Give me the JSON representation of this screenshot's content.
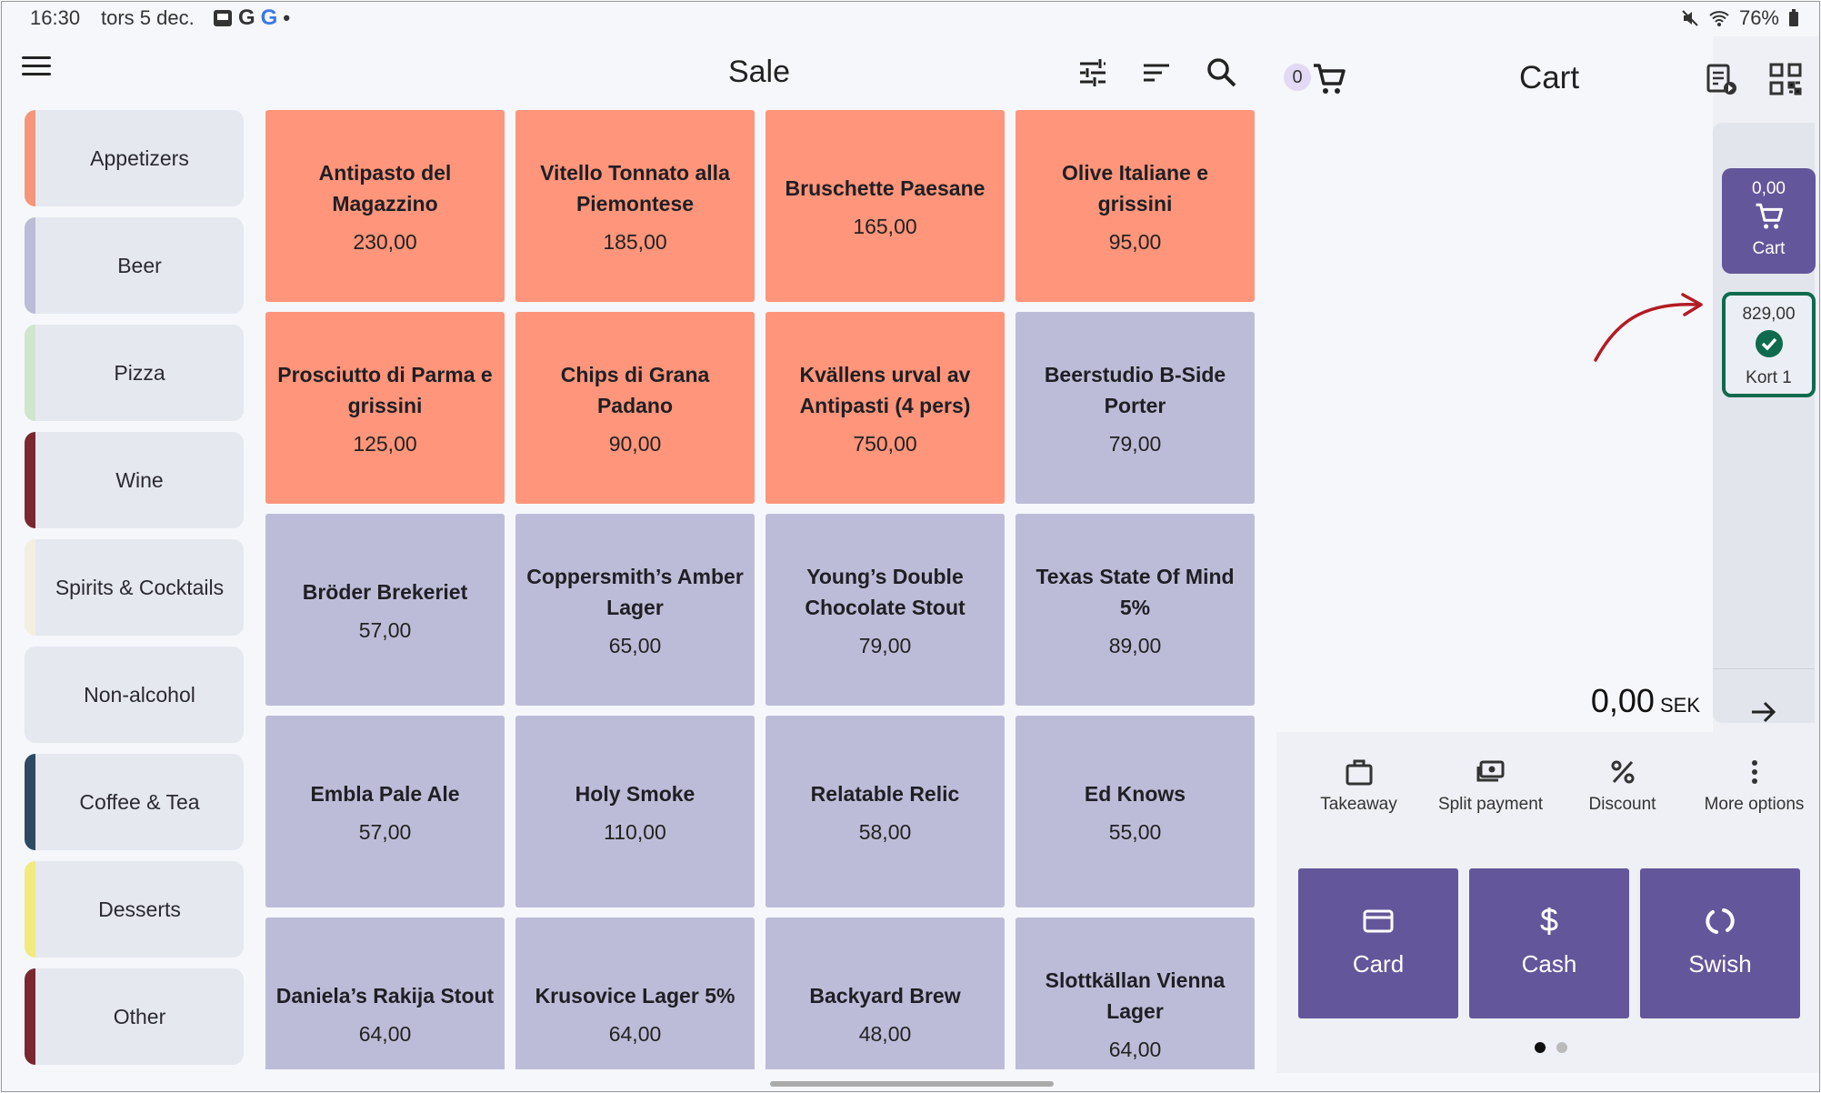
{
  "status_bar": {
    "time": "16:30",
    "date": "tors 5 dec.",
    "battery": "76%"
  },
  "header": {
    "title": "Sale",
    "icons": [
      "menu-icon",
      "tune-icon",
      "sort-icon",
      "search-icon"
    ]
  },
  "categories": [
    {
      "label": "Appetizers",
      "color": "#f5957a"
    },
    {
      "label": "Beer",
      "color": "#bcbcd6"
    },
    {
      "label": "Pizza",
      "color": "#cfe5cc"
    },
    {
      "label": "Wine",
      "color": "#7a2730"
    },
    {
      "label": "Spirits & Cocktails",
      "color": "#f3efe0"
    },
    {
      "label": "Non-alcohol",
      "color": "#e6e8f0"
    },
    {
      "label": "Coffee & Tea",
      "color": "#2e4a63"
    },
    {
      "label": "Desserts",
      "color": "#f2ea7c"
    },
    {
      "label": "Other",
      "color": "#7a2730"
    }
  ],
  "products": [
    {
      "name": "Antipasto del Magazzino",
      "price": "230,00",
      "color": "#ff957a"
    },
    {
      "name": "Vitello Tonnato alla Piemontese",
      "price": "185,00",
      "color": "#ff957a"
    },
    {
      "name": "Bruschette Paesane",
      "price": "165,00",
      "color": "#ff957a"
    },
    {
      "name": "Olive Italiane e grissini",
      "price": "95,00",
      "color": "#ff957a"
    },
    {
      "name": "Prosciutto di Parma e grissini",
      "price": "125,00",
      "color": "#ff957a"
    },
    {
      "name": "Chips di Grana Padano",
      "price": "90,00",
      "color": "#ff957a"
    },
    {
      "name": "Kvällens urval av Antipasti (4 pers)",
      "price": "750,00",
      "color": "#ff957a"
    },
    {
      "name": "Beerstudio B-Side Porter",
      "price": "79,00",
      "color": "#bdbcd8"
    },
    {
      "name": "Bröder Brekeriet",
      "price": "57,00",
      "color": "#bdbcd8"
    },
    {
      "name": "Coppersmith’s Amber Lager",
      "price": "65,00",
      "color": "#bdbcd8"
    },
    {
      "name": "Young’s Double Chocolate Stout",
      "price": "79,00",
      "color": "#bdbcd8"
    },
    {
      "name": "Texas State Of Mind 5%",
      "price": "89,00",
      "color": "#bdbcd8"
    },
    {
      "name": "Embla Pale Ale",
      "price": "57,00",
      "color": "#bdbcd8"
    },
    {
      "name": "Holy Smoke",
      "price": "110,00",
      "color": "#bdbcd8"
    },
    {
      "name": "Relatable Relic",
      "price": "58,00",
      "color": "#bdbcd8"
    },
    {
      "name": "Ed Knows",
      "price": "55,00",
      "color": "#bdbcd8"
    },
    {
      "name": "Daniela’s Rakija Stout",
      "price": "64,00",
      "color": "#bdbcd8"
    },
    {
      "name": "Krusovice Lager 5%",
      "price": "64,00",
      "color": "#bdbcd8"
    },
    {
      "name": "Backyard Brew",
      "price": "48,00",
      "color": "#bdbcd8"
    },
    {
      "name": "Slottkällan Vienna Lager",
      "price": "64,00",
      "color": "#bdbcd8"
    }
  ],
  "cart": {
    "count": "0",
    "title": "Cart",
    "total": "0,00",
    "currency": "SEK",
    "side_cart": {
      "amount": "0,00",
      "label": "Cart"
    },
    "side_kort": {
      "amount": "829,00",
      "label": "Kort 1"
    }
  },
  "actions": [
    {
      "label": "Takeaway",
      "icon": "briefcase-icon"
    },
    {
      "label": "Split payment",
      "icon": "split-payment-icon"
    },
    {
      "label": "Discount",
      "icon": "percent-icon"
    },
    {
      "label": "More options",
      "icon": "more-vert-icon"
    }
  ],
  "payments": [
    {
      "label": "Card",
      "icon": "credit-card-icon"
    },
    {
      "label": "Cash",
      "icon": "dollar-icon"
    },
    {
      "label": "Swish",
      "icon": "swish-icon"
    }
  ],
  "colors": {
    "accent": "#64569a",
    "selected_border": "#0e6b4d",
    "annotation": "#b31b24"
  }
}
